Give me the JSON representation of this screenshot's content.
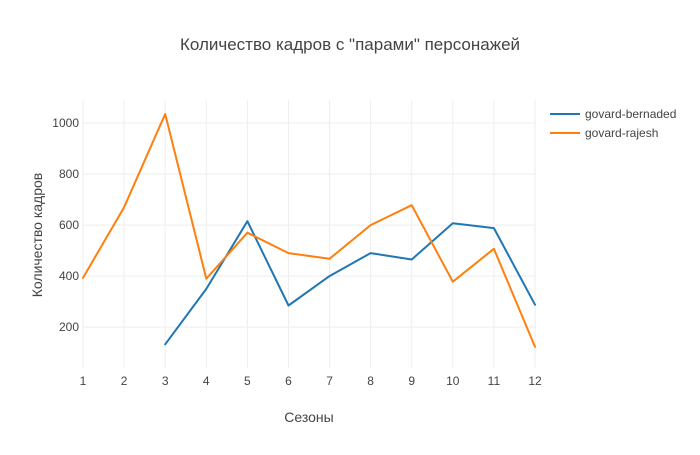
{
  "chart_data": {
    "type": "line",
    "title": "Количество кадров с \"парами\" персонажей",
    "xlabel": "Сезоны",
    "ylabel": "Количество кадров",
    "x": [
      1,
      2,
      3,
      4,
      5,
      6,
      7,
      8,
      9,
      10,
      11,
      12
    ],
    "xlim": [
      1,
      12
    ],
    "ylim": [
      40,
      1090
    ],
    "x_ticks": [
      "1",
      "2",
      "3",
      "4",
      "5",
      "6",
      "7",
      "8",
      "9",
      "10",
      "11",
      "12"
    ],
    "y_ticks": [
      200,
      400,
      600,
      800,
      1000
    ],
    "y_tick_labels": [
      "200",
      "400",
      "600",
      "800",
      "1000"
    ],
    "grid": true,
    "legend_position": "top-right",
    "series": [
      {
        "name": "govard-bernaded",
        "color": "#1f77b4",
        "values": [
          null,
          null,
          133,
          350,
          615,
          285,
          400,
          490,
          465,
          607,
          588,
          288
        ]
      },
      {
        "name": "govard-rajesh",
        "color": "#ff7f0e",
        "values": [
          393,
          670,
          1035,
          390,
          570,
          490,
          468,
          600,
          678,
          378,
          507,
          123
        ]
      }
    ]
  }
}
